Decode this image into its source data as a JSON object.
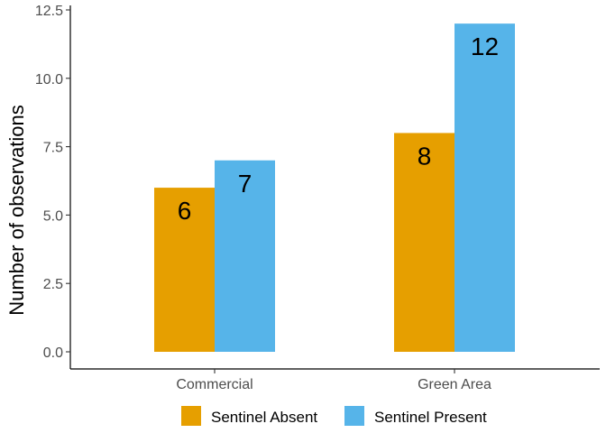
{
  "chart_data": {
    "type": "bar",
    "title": "",
    "xlabel": "",
    "ylabel": "Number of observations",
    "categories": [
      "Commercial",
      "Green Area"
    ],
    "series": [
      {
        "name": "Sentinel Absent",
        "values": [
          6,
          8
        ],
        "color": "#E69F00"
      },
      {
        "name": "Sentinel Present",
        "values": [
          7,
          12
        ],
        "color": "#56B4E9"
      }
    ],
    "ylim": [
      0,
      12.5
    ],
    "yticks": [
      0,
      2.5,
      5,
      7.5,
      10,
      12.5
    ],
    "ytick_labels": [
      "0.0",
      "2.5",
      "5.0",
      "7.5",
      "10.0",
      "12.5"
    ],
    "data_labels": [
      [
        "6",
        "8"
      ],
      [
        "7",
        "12"
      ]
    ],
    "grid": false,
    "legend_position": "bottom"
  }
}
